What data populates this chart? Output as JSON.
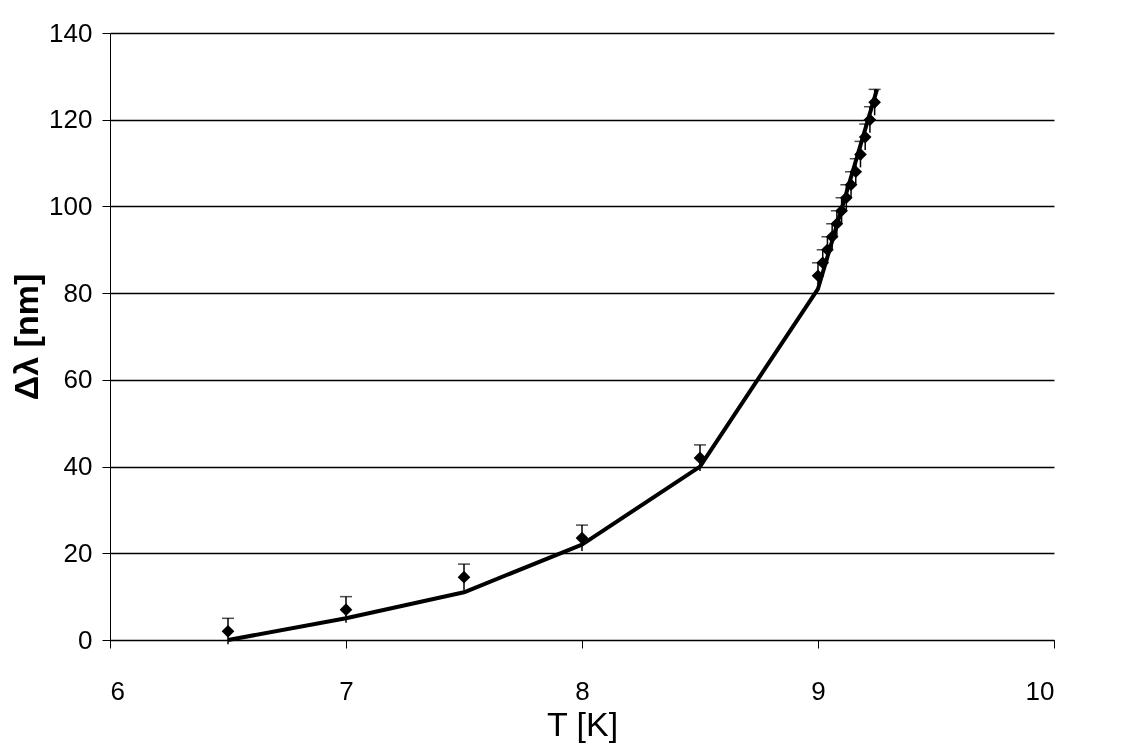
{
  "chart_data": {
    "type": "scatter",
    "xlabel": "T [K]",
    "ylabel": "Δλ [nm]",
    "xlim": [
      6,
      10
    ],
    "xticks": [
      6,
      7,
      8,
      9,
      10
    ],
    "ylim": [
      0,
      140
    ],
    "yticks": [
      0,
      20,
      40,
      60,
      80,
      100,
      120,
      140
    ],
    "grid": "y",
    "series": [
      {
        "type": "line",
        "color": "#000000",
        "marker": "none",
        "line_style": "solid",
        "x": [
          6.5,
          7.0,
          7.5,
          8.0,
          8.5,
          9.0,
          9.25
        ],
        "values": [
          0,
          5,
          11,
          22,
          40,
          81,
          127
        ]
      },
      {
        "color": "#000000",
        "marker": "diamond",
        "x": [
          6.5,
          7.0,
          7.5,
          8.0,
          8.5,
          9.0,
          9.02,
          9.04,
          9.06,
          9.08,
          9.1,
          9.12,
          9.14,
          9.16,
          9.18,
          9.2,
          9.22,
          9.24
        ],
        "values": [
          2,
          7,
          14.5,
          23.5,
          42,
          84,
          87,
          90,
          93,
          96,
          99,
          102,
          105,
          108,
          112,
          116,
          120,
          124
        ],
        "errors": [
          3,
          3,
          3,
          3,
          3,
          3,
          3,
          3,
          3,
          3,
          3,
          3,
          3,
          3,
          3,
          3,
          3,
          3
        ]
      }
    ]
  }
}
